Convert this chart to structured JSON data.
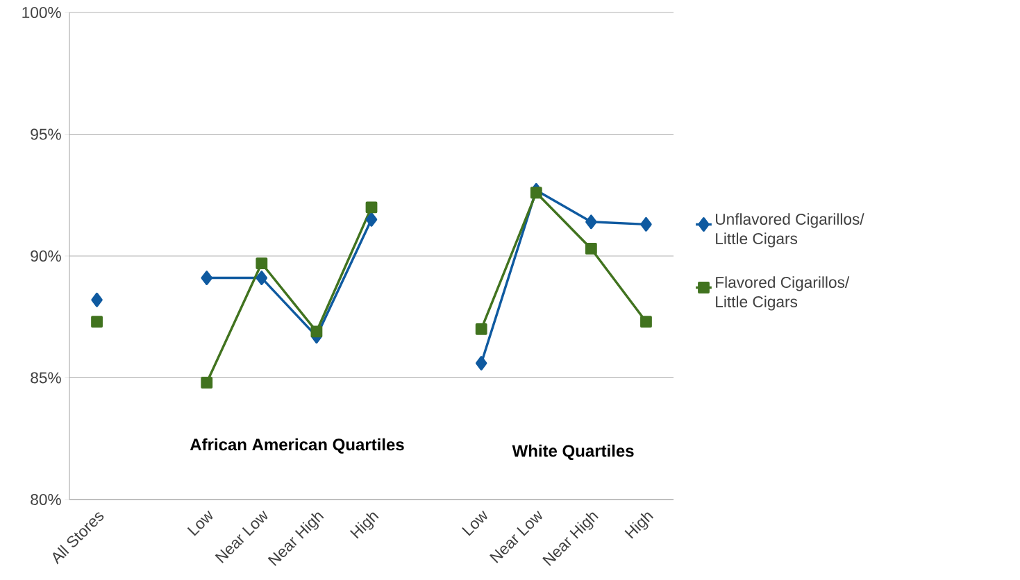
{
  "chart_data": {
    "type": "line",
    "categories": [
      "All Stores",
      null,
      "Low",
      "Near Low",
      "Near High",
      "High",
      null,
      "Low",
      "Near Low",
      "Near High",
      "High"
    ],
    "series": [
      {
        "name": "Unflavored Cigarillos/ Little Cigars",
        "color": "#0f5aa0",
        "marker": "diamond",
        "values": [
          88.2,
          null,
          89.1,
          89.1,
          86.7,
          91.5,
          null,
          85.6,
          92.7,
          91.4,
          91.3
        ]
      },
      {
        "name": "Flavored Cigarillos/ Little Cigars",
        "color": "#41731f",
        "marker": "square",
        "values": [
          87.3,
          null,
          84.8,
          89.7,
          86.9,
          92.0,
          null,
          87.0,
          92.6,
          90.3,
          87.3
        ]
      }
    ],
    "ylim": [
      80,
      100
    ],
    "yticks": [
      {
        "value": 80,
        "label": "80%"
      },
      {
        "value": 85,
        "label": "85%"
      },
      {
        "value": 90,
        "label": "90%"
      },
      {
        "value": 95,
        "label": "95%"
      },
      {
        "value": 100,
        "label": "100%"
      }
    ],
    "grid": "y",
    "legend": "right",
    "annotations": [
      "African American Quartiles",
      "White Quartiles"
    ]
  }
}
